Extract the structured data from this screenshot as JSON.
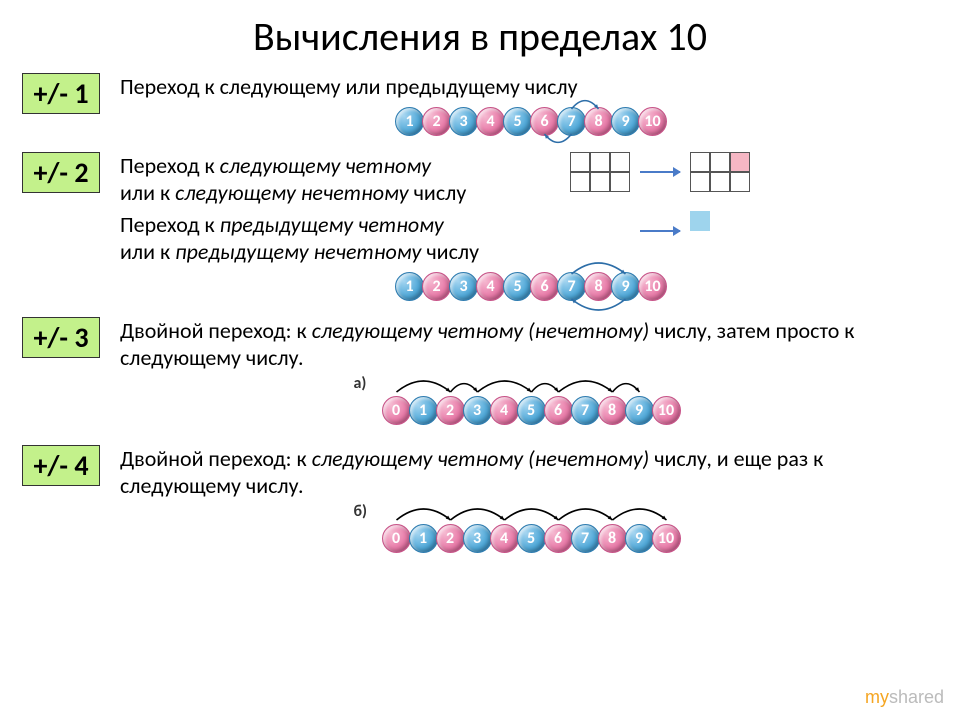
{
  "title": "Вычисления в пределах 10",
  "sections": {
    "s1": {
      "badge": "+/- 1",
      "desc": "Переход к следующему или предыдущему числу",
      "balls": [
        {
          "n": "1",
          "c": "blue"
        },
        {
          "n": "2",
          "c": "pink"
        },
        {
          "n": "3",
          "c": "blue"
        },
        {
          "n": "4",
          "c": "pink"
        },
        {
          "n": "5",
          "c": "blue"
        },
        {
          "n": "6",
          "c": "pink"
        },
        {
          "n": "7",
          "c": "blue"
        },
        {
          "n": "8",
          "c": "pink"
        },
        {
          "n": "9",
          "c": "blue"
        },
        {
          "n": "10",
          "c": "pink"
        }
      ],
      "arcs": [
        {
          "from": 6,
          "to": 7,
          "side": "top",
          "color": "#2d6ea8"
        },
        {
          "from": 6,
          "to": 5,
          "side": "bottom",
          "color": "#2d6ea8"
        }
      ]
    },
    "s2": {
      "badge": "+/- 2",
      "desc1_a": "Переход к ",
      "desc1_b": "следующему четному",
      "desc1_c": " или к ",
      "desc1_d": "следующему нечетному",
      "desc1_e": " числу",
      "desc2_a": "Переход к ",
      "desc2_b": "предыдущему четному",
      "desc2_c": " или к ",
      "desc2_d": "предыдущему нечетному",
      "desc2_e": " числу",
      "balls": [
        {
          "n": "1",
          "c": "blue"
        },
        {
          "n": "2",
          "c": "pink"
        },
        {
          "n": "3",
          "c": "blue"
        },
        {
          "n": "4",
          "c": "pink"
        },
        {
          "n": "5",
          "c": "blue"
        },
        {
          "n": "6",
          "c": "pink"
        },
        {
          "n": "7",
          "c": "blue"
        },
        {
          "n": "8",
          "c": "pink"
        },
        {
          "n": "9",
          "c": "blue"
        },
        {
          "n": "10",
          "c": "pink"
        }
      ],
      "arcs": [
        {
          "from": 6,
          "to": 8,
          "side": "top",
          "color": "#2d6ea8"
        },
        {
          "from": 8,
          "to": 6,
          "side": "bottom",
          "color": "#2d6ea8"
        }
      ],
      "grid1": {
        "cols": 3,
        "rows": 2,
        "hilite": null,
        "hilite_color": null,
        "to_cols": 3,
        "to_rows": 2,
        "to_hilite": [
          0,
          2
        ],
        "to_hilite_color": "#f6b7c4",
        "arrow_color": "#4a7bc8"
      },
      "grid2": {
        "combo": true,
        "arrow_color": "#4a7bc8",
        "left_shape": "L",
        "to_hilite_color": "#9ed4ed"
      }
    },
    "s3": {
      "badge": "+/- 3",
      "desc_a": "Двойной переход: к ",
      "desc_b": "следующему четному (нечетному)",
      "desc_c": " числу, затем просто к следующему числу.",
      "lbl": "а)",
      "balls": [
        {
          "n": "0",
          "c": "pink"
        },
        {
          "n": "1",
          "c": "blue"
        },
        {
          "n": "2",
          "c": "pink"
        },
        {
          "n": "3",
          "c": "blue"
        },
        {
          "n": "4",
          "c": "pink"
        },
        {
          "n": "5",
          "c": "blue"
        },
        {
          "n": "6",
          "c": "pink"
        },
        {
          "n": "7",
          "c": "blue"
        },
        {
          "n": "8",
          "c": "pink"
        },
        {
          "n": "9",
          "c": "blue"
        },
        {
          "n": "10",
          "c": "pink"
        }
      ],
      "arcs": [
        {
          "from": 0,
          "to": 2,
          "side": "top",
          "color": "#000"
        },
        {
          "from": 2,
          "to": 3,
          "side": "top",
          "color": "#000"
        },
        {
          "from": 3,
          "to": 5,
          "side": "top",
          "color": "#000"
        },
        {
          "from": 5,
          "to": 6,
          "side": "top",
          "color": "#000"
        },
        {
          "from": 6,
          "to": 8,
          "side": "top",
          "color": "#000"
        },
        {
          "from": 8,
          "to": 9,
          "side": "top",
          "color": "#000"
        }
      ]
    },
    "s4": {
      "badge": "+/- 4",
      "desc_a": "Двойной переход: к ",
      "desc_b": "следующему четному (нечетному)",
      "desc_c": " числу, и еще раз к следующему числу.",
      "lbl": "б)",
      "balls": [
        {
          "n": "0",
          "c": "pink"
        },
        {
          "n": "1",
          "c": "blue"
        },
        {
          "n": "2",
          "c": "pink"
        },
        {
          "n": "3",
          "c": "blue"
        },
        {
          "n": "4",
          "c": "pink"
        },
        {
          "n": "5",
          "c": "blue"
        },
        {
          "n": "6",
          "c": "pink"
        },
        {
          "n": "7",
          "c": "blue"
        },
        {
          "n": "8",
          "c": "pink"
        },
        {
          "n": "9",
          "c": "blue"
        },
        {
          "n": "10",
          "c": "pink"
        }
      ],
      "arcs": [
        {
          "from": 0,
          "to": 2,
          "side": "top",
          "color": "#000"
        },
        {
          "from": 2,
          "to": 4,
          "side": "top",
          "color": "#000"
        },
        {
          "from": 4,
          "to": 6,
          "side": "top",
          "color": "#000"
        },
        {
          "from": 6,
          "to": 8,
          "side": "top",
          "color": "#000"
        },
        {
          "from": 8,
          "to": 10,
          "side": "top",
          "color": "#000"
        }
      ]
    }
  },
  "footer": {
    "brand_a": "my",
    "brand_b": "shared"
  },
  "style": {
    "ball_diameter": 29,
    "ball_overlap": 2,
    "title_fontsize": 40,
    "desc_fontsize": 22,
    "badge_bg": "#c3f18b",
    "badge_border": "#333333"
  }
}
